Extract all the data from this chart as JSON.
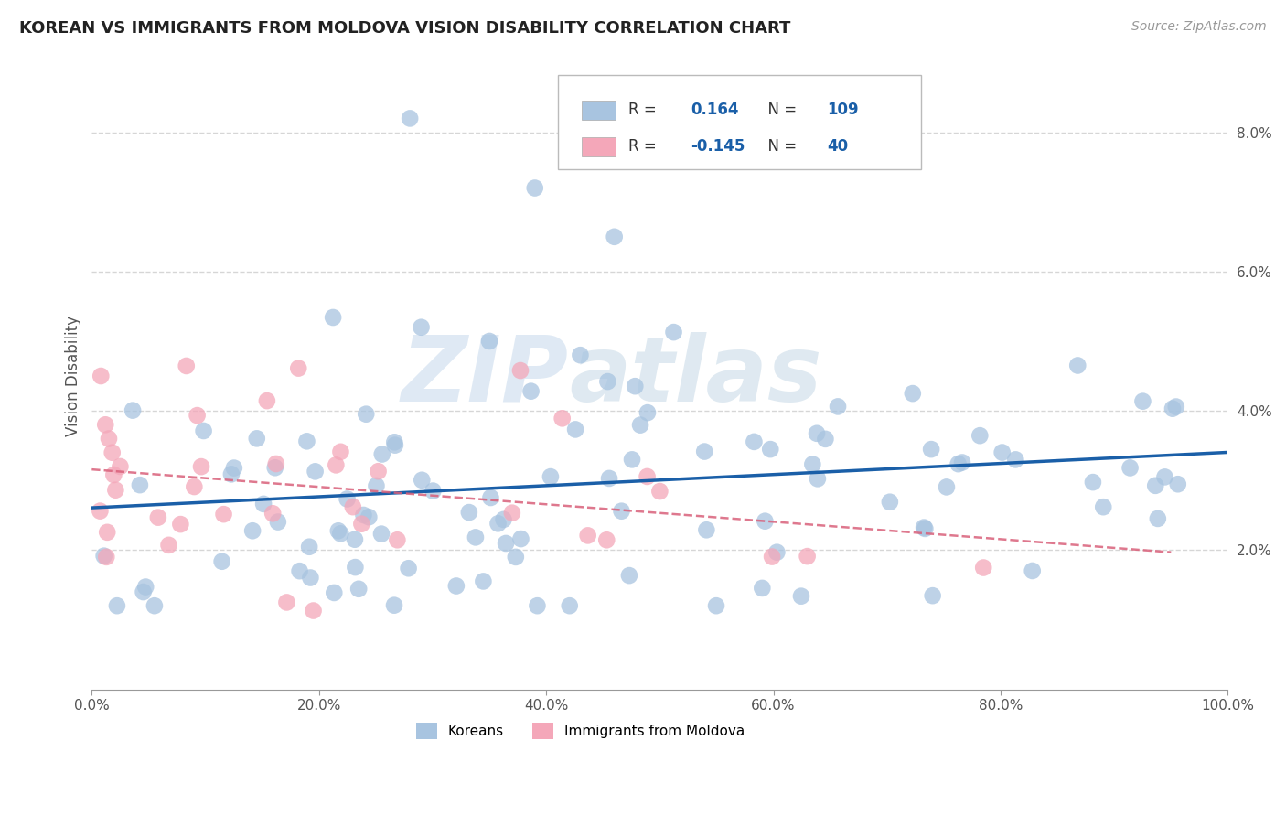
{
  "title": "KOREAN VS IMMIGRANTS FROM MOLDOVA VISION DISABILITY CORRELATION CHART",
  "source": "Source: ZipAtlas.com",
  "ylabel": "Vision Disability",
  "xlim": [
    0.0,
    1.0
  ],
  "ylim": [
    0.0,
    0.09
  ],
  "yticks": [
    0.02,
    0.04,
    0.06,
    0.08
  ],
  "ytick_labels": [
    "2.0%",
    "4.0%",
    "6.0%",
    "8.0%"
  ],
  "xticks": [
    0.0,
    0.2,
    0.4,
    0.6,
    0.8,
    1.0
  ],
  "xtick_labels": [
    "0.0%",
    "20.0%",
    "40.0%",
    "60.0%",
    "80.0%",
    "100.0%"
  ],
  "korean_color": "#a8c4e0",
  "moldova_color": "#f4a7b9",
  "korean_line_color": "#1a5fa8",
  "moldova_line_color": "#d9607a",
  "R_korean": 0.164,
  "N_korean": 109,
  "R_moldova": -0.145,
  "N_moldova": 40,
  "background_color": "#ffffff",
  "grid_color": "#cccccc",
  "legend_labels": [
    "Koreans",
    "Immigrants from Moldova"
  ],
  "korean_seed": 7,
  "moldova_seed": 13
}
